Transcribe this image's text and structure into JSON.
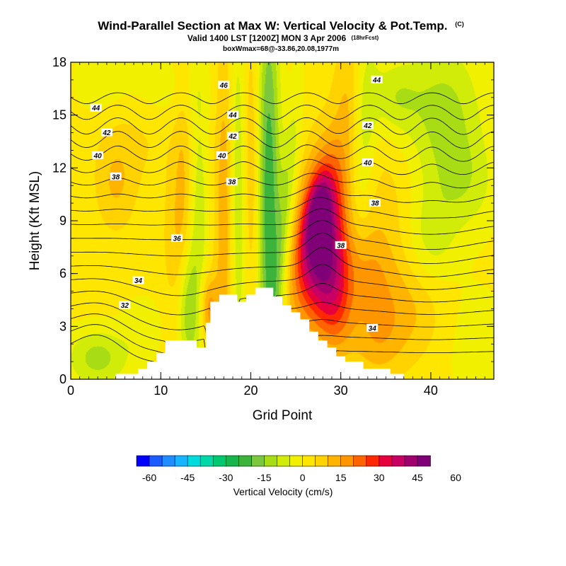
{
  "title": {
    "main": "Wind-Parallel Section at Max W: Vertical Velocity & Pot.Temp.",
    "mark": "(C)",
    "line2": "Valid 1400 LST [1200Z] MON 3 Apr 2006",
    "line2_small": "(18hrFcst)",
    "line3": "boxWmax=68@-33.86,20.08,1977m"
  },
  "chart_data": {
    "type": "heatmap",
    "xlabel": "Grid Point",
    "ylabel": "Height (Kft MSL)",
    "xlim": [
      0,
      47
    ],
    "ylim": [
      0,
      18
    ],
    "x_ticks": [
      0,
      10,
      20,
      30,
      40
    ],
    "x_tick_labels": [
      "0",
      "10",
      "20",
      "30",
      "40"
    ],
    "y_ticks": [
      0,
      3,
      6,
      9,
      12,
      15,
      18
    ],
    "y_tick_labels": [
      "0",
      "3",
      "6",
      "9",
      "12",
      "15",
      "18"
    ],
    "colorbar": {
      "label": "Vertical Velocity (cm/s)",
      "range": [
        -60,
        60
      ],
      "step": 5,
      "tick_values": [
        -60,
        -45,
        -30,
        -15,
        0,
        15,
        30,
        45,
        60
      ],
      "tick_labels": [
        "-60",
        "-45",
        "-30",
        "-15",
        "0",
        "15",
        "30",
        "45",
        "60"
      ],
      "colors": [
        "#0000ff",
        "#1a5cff",
        "#1f8cff",
        "#18b4ff",
        "#00dcdc",
        "#00d8a8",
        "#00c870",
        "#18b44c",
        "#3cb43c",
        "#7cc83c",
        "#a8dc14",
        "#d2ec0a",
        "#f0f000",
        "#ffe600",
        "#ffd200",
        "#ffb400",
        "#ff9600",
        "#ff6400",
        "#ff2800",
        "#e6003c",
        "#c80064",
        "#a0006e",
        "#800078"
      ]
    },
    "terrain": [
      [
        0,
        0
      ],
      [
        5,
        0
      ],
      [
        5,
        0.3
      ],
      [
        7.5,
        0.3
      ],
      [
        7.5,
        0.6
      ],
      [
        8.5,
        0.6
      ],
      [
        8.5,
        1
      ],
      [
        9.5,
        1
      ],
      [
        9.5,
        1.5
      ],
      [
        10.5,
        1.5
      ],
      [
        10.5,
        2.2
      ],
      [
        14,
        2.2
      ],
      [
        14,
        1.8
      ],
      [
        15,
        1.8
      ],
      [
        15,
        3.2
      ],
      [
        15.5,
        3.2
      ],
      [
        15.5,
        4.4
      ],
      [
        16.5,
        4.4
      ],
      [
        16.5,
        4.8
      ],
      [
        18.5,
        4.8
      ],
      [
        18.5,
        4.4
      ],
      [
        19.5,
        4.4
      ],
      [
        19.5,
        4.8
      ],
      [
        20.5,
        4.8
      ],
      [
        20.5,
        5.2
      ],
      [
        22.5,
        5.2
      ],
      [
        22.5,
        4.7
      ],
      [
        23.5,
        4.7
      ],
      [
        23.5,
        4.2
      ],
      [
        24.5,
        4.2
      ],
      [
        24.5,
        3.8
      ],
      [
        25.5,
        3.8
      ],
      [
        25.5,
        3.4
      ],
      [
        26.5,
        3.4
      ],
      [
        26.5,
        2.7
      ],
      [
        27.5,
        2.7
      ],
      [
        27.5,
        2.2
      ],
      [
        28.5,
        2.2
      ],
      [
        28.5,
        1.8
      ],
      [
        29.5,
        1.8
      ],
      [
        29.5,
        1.3
      ],
      [
        30.5,
        1.3
      ],
      [
        30.5,
        1
      ],
      [
        32.5,
        1
      ],
      [
        32.5,
        0.6
      ],
      [
        35.5,
        0.6
      ],
      [
        35.5,
        0.3
      ],
      [
        37,
        0.3
      ],
      [
        37,
        0
      ],
      [
        47,
        0
      ]
    ],
    "w_features": [
      {
        "x": 27.5,
        "y": 8.5,
        "sx": 1.7,
        "sy": 3.3,
        "rot": -22,
        "amp": 42
      },
      {
        "x": 29,
        "y": 6,
        "sx": 1.6,
        "sy": 2.2,
        "rot": -15,
        "amp": 22
      },
      {
        "x": 27.5,
        "y": 9.5,
        "sx": 0.8,
        "sy": 1.4,
        "rot": -20,
        "amp": 18
      },
      {
        "x": 29.5,
        "y": 3.5,
        "sx": 1.5,
        "sy": 1.8,
        "rot": 0,
        "amp": 12
      },
      {
        "x": 22,
        "y": 10,
        "sx": 0.9,
        "sy": 9,
        "rot": 0,
        "amp": -26
      },
      {
        "x": 23.8,
        "y": 9,
        "sx": 0.7,
        "sy": 5,
        "rot": -10,
        "amp": -14
      },
      {
        "x": 20,
        "y": 12,
        "sx": 0.7,
        "sy": 6,
        "rot": 0,
        "amp": 10
      },
      {
        "x": 18.5,
        "y": 10,
        "sx": 0.8,
        "sy": 8,
        "rot": 0,
        "amp": -14
      },
      {
        "x": 17.2,
        "y": 9,
        "sx": 0.8,
        "sy": 8,
        "rot": 0,
        "amp": 14
      },
      {
        "x": 15.3,
        "y": 4,
        "sx": 0.7,
        "sy": 1.4,
        "rot": 0,
        "amp": 16
      },
      {
        "x": 14.2,
        "y": 9,
        "sx": 0.8,
        "sy": 6,
        "rot": 0,
        "amp": -10
      },
      {
        "x": 13,
        "y": 4,
        "sx": 0.8,
        "sy": 2.5,
        "rot": 0,
        "amp": -16
      },
      {
        "x": 12.5,
        "y": 11,
        "sx": 0.8,
        "sy": 5,
        "rot": 0,
        "amp": 8
      },
      {
        "x": 11.5,
        "y": 8,
        "sx": 1,
        "sy": 3,
        "rot": 0,
        "amp": 5
      },
      {
        "x": 32.5,
        "y": 14,
        "sx": 1,
        "sy": 4,
        "rot": -5,
        "amp": -12
      },
      {
        "x": 31,
        "y": 16,
        "sx": 1.2,
        "sy": 2.5,
        "rot": 0,
        "amp": 8
      },
      {
        "x": 36,
        "y": 16,
        "sx": 2,
        "sy": 1.5,
        "rot": 0,
        "amp": -10
      },
      {
        "x": 41.5,
        "y": 15,
        "sx": 3,
        "sy": 3,
        "rot": 0,
        "amp": -14
      },
      {
        "x": 44,
        "y": 11,
        "sx": 2.5,
        "sy": 2,
        "rot": 0,
        "amp": -8
      },
      {
        "x": 40,
        "y": 8,
        "sx": 2,
        "sy": 2,
        "rot": 0,
        "amp": -9
      },
      {
        "x": 45,
        "y": 2,
        "sx": 2.5,
        "sy": 2.5,
        "rot": 0,
        "amp": -5
      },
      {
        "x": 35,
        "y": 10,
        "sx": 2.5,
        "sy": 3,
        "rot": 0,
        "amp": 5
      },
      {
        "x": 37,
        "y": 4,
        "sx": 3,
        "sy": 2,
        "rot": 0,
        "amp": 9
      },
      {
        "x": 33,
        "y": 6,
        "sx": 2,
        "sy": 2,
        "rot": 0,
        "amp": 10
      },
      {
        "x": 3,
        "y": 1.2,
        "sx": 2.5,
        "sy": 1.2,
        "rot": 0,
        "amp": -14
      },
      {
        "x": 8,
        "y": 3,
        "sx": 1.5,
        "sy": 1.2,
        "rot": 0,
        "amp": -6
      },
      {
        "x": 5,
        "y": 11,
        "sx": 1.5,
        "sy": 1.8,
        "rot": 0,
        "amp": 8
      },
      {
        "x": 3,
        "y": 17,
        "sx": 2,
        "sy": 1.5,
        "rot": 0,
        "amp": -5
      },
      {
        "x": 10,
        "y": 16.5,
        "sx": 4,
        "sy": 1.5,
        "rot": 0,
        "amp": -5
      },
      {
        "x": 7,
        "y": 14,
        "sx": 3,
        "sy": 2,
        "rot": 0,
        "amp": 4
      },
      {
        "x": 34,
        "y": 2,
        "sx": 2,
        "sy": 1.5,
        "rot": 0,
        "amp": 8
      }
    ],
    "theta_levels": [
      28,
      29,
      30,
      31,
      32,
      33,
      34,
      35,
      36,
      37,
      38,
      39,
      40,
      41,
      42,
      43,
      44,
      45,
      46
    ],
    "contour_labels": [
      {
        "x": 2.8,
        "y": 15.4,
        "text": "44"
      },
      {
        "x": 4.0,
        "y": 14.0,
        "text": "42"
      },
      {
        "x": 3.0,
        "y": 12.7,
        "text": "40"
      },
      {
        "x": 5.0,
        "y": 11.5,
        "text": "38"
      },
      {
        "x": 11.8,
        "y": 8.0,
        "text": "36"
      },
      {
        "x": 7.5,
        "y": 5.6,
        "text": "34"
      },
      {
        "x": 6.0,
        "y": 4.2,
        "text": "32"
      },
      {
        "x": 17.0,
        "y": 16.7,
        "text": "46"
      },
      {
        "x": 18.0,
        "y": 15.0,
        "text": "44"
      },
      {
        "x": 18.0,
        "y": 13.8,
        "text": "42"
      },
      {
        "x": 16.8,
        "y": 12.7,
        "text": "40"
      },
      {
        "x": 17.9,
        "y": 11.2,
        "text": "38"
      },
      {
        "x": 34.0,
        "y": 17.0,
        "text": "44"
      },
      {
        "x": 33.0,
        "y": 14.4,
        "text": "42"
      },
      {
        "x": 33.0,
        "y": 12.3,
        "text": "40"
      },
      {
        "x": 33.8,
        "y": 10.0,
        "text": "38"
      },
      {
        "x": 30.0,
        "y": 7.6,
        "text": "38"
      },
      {
        "x": 33.5,
        "y": 2.9,
        "text": "34"
      }
    ]
  }
}
